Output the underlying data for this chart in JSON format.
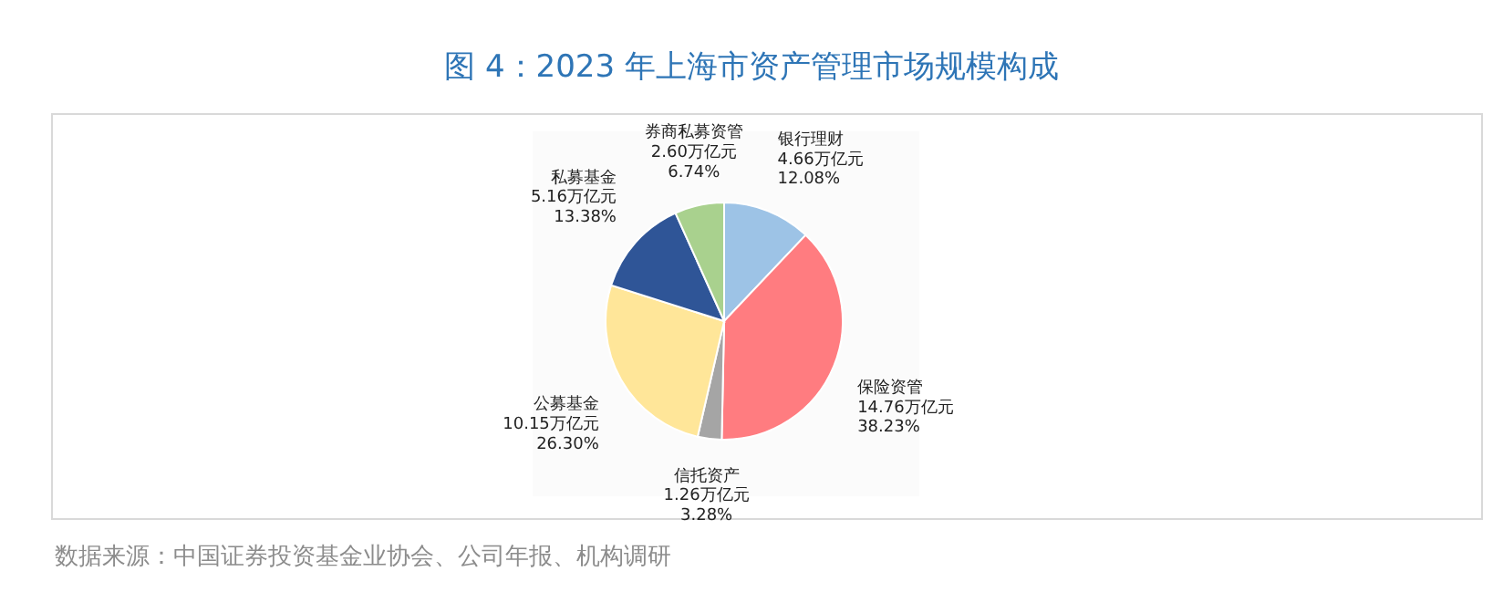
{
  "chart_data": {
    "type": "pie",
    "title": "图 4：2023 年上海市资产管理市场规模构成",
    "categories": [
      "银行理财",
      "保险资管",
      "信托资产",
      "公募基金",
      "私募基金",
      "券商私募资管"
    ],
    "values": [
      4.66,
      14.76,
      1.26,
      10.15,
      5.16,
      2.6
    ],
    "value_labels": [
      "4.66万亿元\n12.08%",
      "14.76万亿元\n38.23%",
      "1.26万亿元\n3.28%",
      "10.15万亿元\n26.30%",
      "5.16万亿元\n13.38%",
      "2.60万亿元\n6.74%"
    ],
    "colors": [
      "#9dc3e6",
      "#ff7c80",
      "#a5a5a5",
      "#ffe699",
      "#2f5597",
      "#a9d18e"
    ],
    "annotations": [
      "数据来源：中国证券投资基金业协会、公司年报、机构调研"
    ]
  }
}
